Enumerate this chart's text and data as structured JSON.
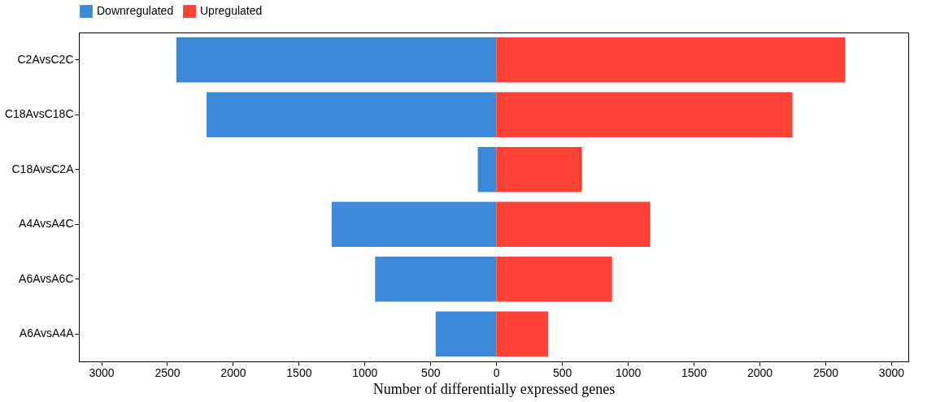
{
  "chart_data": {
    "type": "bar",
    "orientation": "horizontal",
    "stacked": true,
    "categories": [
      "C2AvsC2C",
      "C18AvsC18C",
      "C18AvsC2A",
      "A4AvsA4C",
      "A6AvsA6C",
      "A6AvsA4A"
    ],
    "series": [
      {
        "name": "Downregulated",
        "color": "#3a8ad9",
        "values": [
          -2430,
          -2200,
          -140,
          -1250,
          -920,
          -460
        ]
      },
      {
        "name": "Upregulated",
        "color": "#ff4136",
        "values": [
          2650,
          2250,
          650,
          1170,
          880,
          395
        ]
      }
    ],
    "xlabel": "Number of differentially expressed genes",
    "xlim": [
      -3170,
      3130
    ],
    "xticks": [
      {
        "value": -3000,
        "label": "3000"
      },
      {
        "value": -2500,
        "label": "2500"
      },
      {
        "value": -2000,
        "label": "2000"
      },
      {
        "value": -1500,
        "label": "1500"
      },
      {
        "value": -1000,
        "label": "1000"
      },
      {
        "value": -500,
        "label": "500"
      },
      0,
      500,
      1000,
      1500,
      2000,
      2500,
      3000
    ],
    "legend": "top",
    "grid": false
  }
}
